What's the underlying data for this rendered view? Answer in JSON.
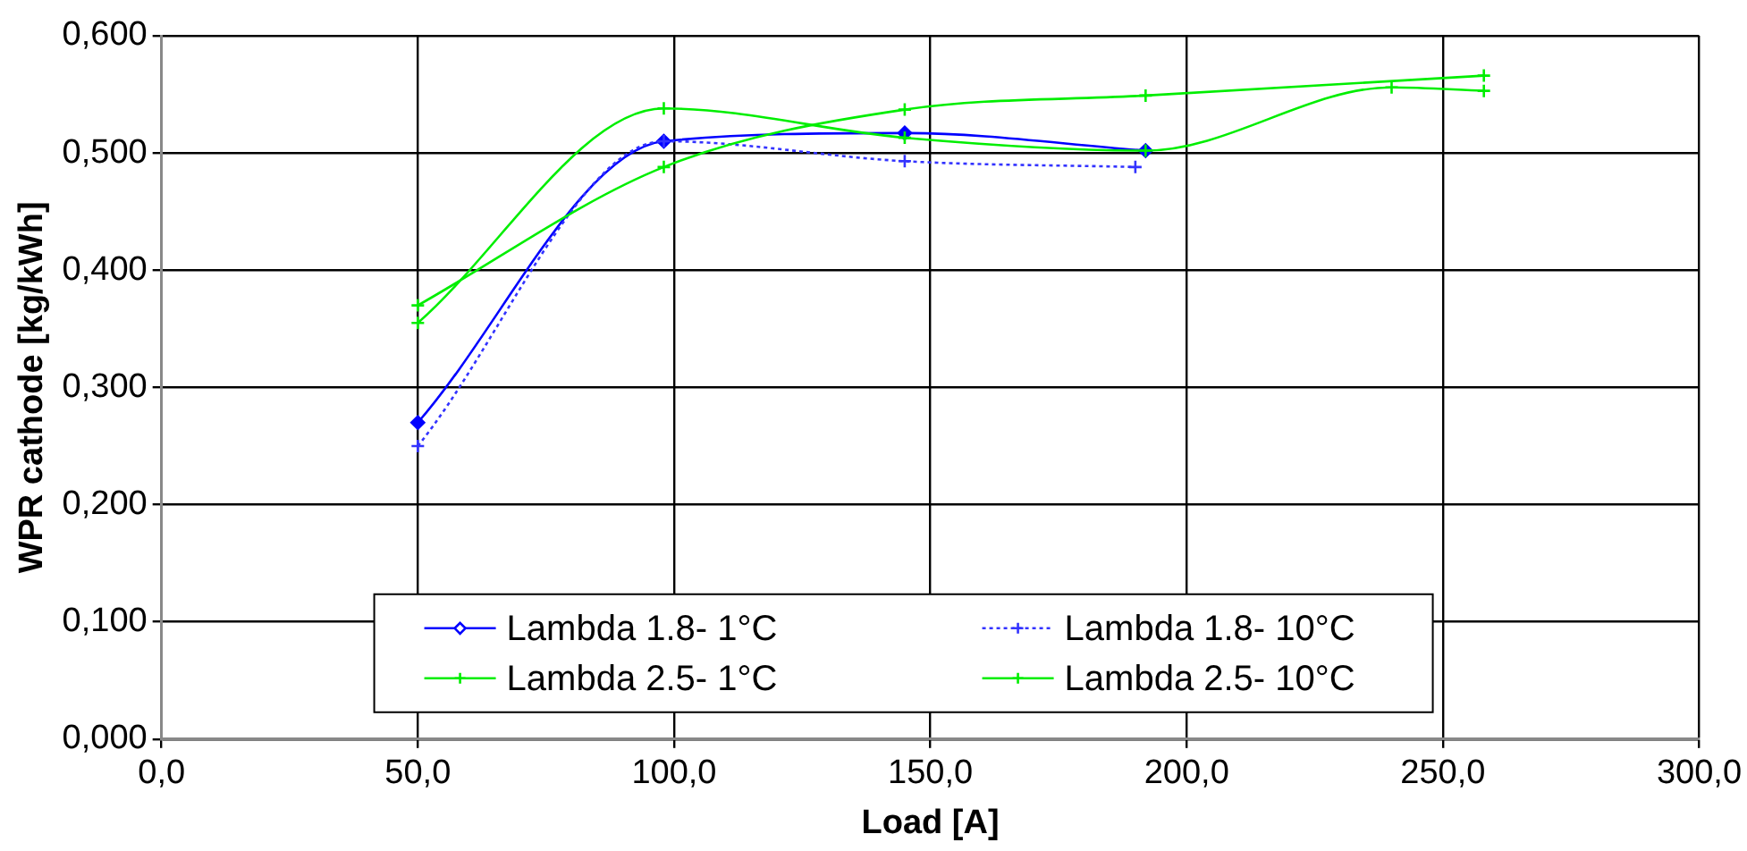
{
  "chart_data": {
    "type": "line",
    "xlabel": "Load [A]",
    "ylabel": "WPR cathode [kg/kWh]",
    "xlim": [
      0,
      300
    ],
    "xticks": [
      {
        "value": 0,
        "label": "0,0"
      },
      {
        "value": 50,
        "label": "50,0"
      },
      {
        "value": 100,
        "label": "100,0"
      },
      {
        "value": 150,
        "label": "150,0"
      },
      {
        "value": 200,
        "label": "200,0"
      },
      {
        "value": 250,
        "label": "250,0"
      },
      {
        "value": 300,
        "label": "300,0"
      }
    ],
    "ylim": [
      0,
      0.6
    ],
    "yticks": [
      {
        "value": 0,
        "label": "0,000"
      },
      {
        "value": 0.1,
        "label": "0,100"
      },
      {
        "value": 0.2,
        "label": "0,200"
      },
      {
        "value": 0.3,
        "label": "0,300"
      },
      {
        "value": 0.4,
        "label": "0,400"
      },
      {
        "value": 0.5,
        "label": "0,500"
      },
      {
        "value": 0.6,
        "label": "0,600"
      }
    ],
    "grid": true,
    "legend": "bottom",
    "series": [
      {
        "name": "Lambda 1.8- 1°C",
        "color": "#0000ff",
        "marker": "diamond",
        "line_style": "solid",
        "x": [
          50,
          98,
          145,
          192
        ],
        "values": [
          0.27,
          0.51,
          0.517,
          0.502
        ]
      },
      {
        "name": "Lambda 1.8- 10°C",
        "color": "#3333ff",
        "marker": "cross",
        "line_style": "dotted",
        "x": [
          50,
          98,
          145,
          190
        ],
        "values": [
          0.25,
          0.51,
          0.493,
          0.488
        ]
      },
      {
        "name": "Lambda 2.5- 1°C",
        "color": "#00ee00",
        "marker": "cross",
        "line_style": "solid",
        "x": [
          50,
          98,
          145,
          192,
          258
        ],
        "values": [
          0.37,
          0.488,
          0.537,
          0.549,
          0.566
        ]
      },
      {
        "name": "Lambda 2.5- 10°C",
        "color": "#00ee00",
        "marker": "cross",
        "line_style": "solid",
        "x": [
          50,
          98,
          145,
          192,
          240,
          258
        ],
        "values": [
          0.355,
          0.538,
          0.513,
          0.502,
          0.556,
          0.553
        ]
      }
    ]
  }
}
